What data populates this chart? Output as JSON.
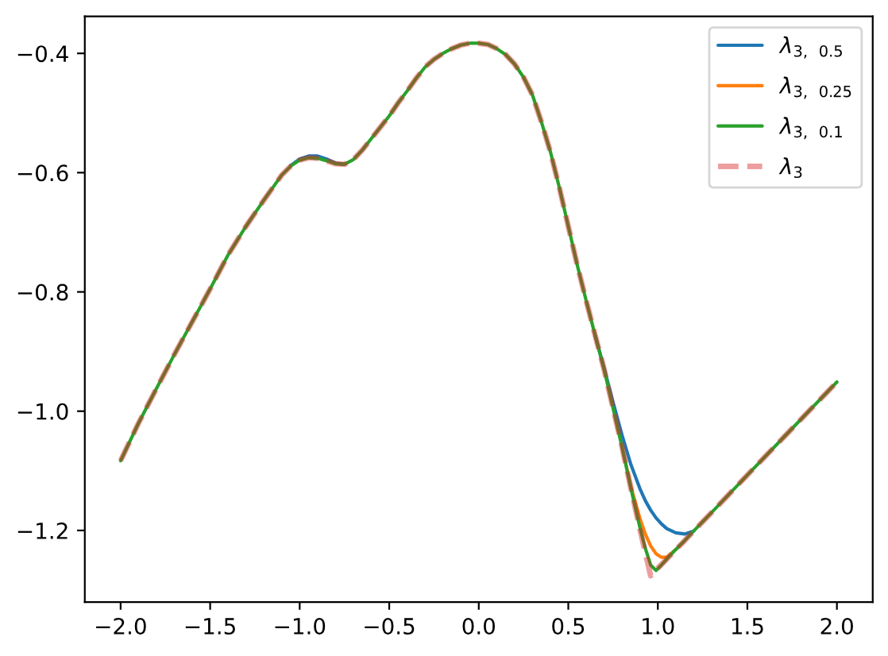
{
  "chart_data": {
    "type": "line",
    "x": [
      -2.0,
      -1.9,
      -1.8,
      -1.7,
      -1.6,
      -1.5,
      -1.4,
      -1.3,
      -1.25,
      -1.2,
      -1.15,
      -1.1,
      -1.05,
      -1.0,
      -0.95,
      -0.9,
      -0.85,
      -0.8,
      -0.75,
      -0.7,
      -0.65,
      -0.6,
      -0.55,
      -0.5,
      -0.45,
      -0.4,
      -0.35,
      -0.3,
      -0.25,
      -0.2,
      -0.15,
      -0.1,
      -0.05,
      0.0,
      0.05,
      0.1,
      0.15,
      0.2,
      0.25,
      0.3,
      0.35,
      0.4,
      0.45,
      0.5,
      0.55,
      0.6,
      0.65,
      0.7,
      0.75,
      0.8,
      0.85,
      0.9,
      0.93,
      0.96,
      0.99,
      1.02,
      1.05,
      1.1,
      1.15,
      1.2,
      1.3,
      1.5,
      1.75,
      2.0
    ],
    "series": [
      {
        "name": "λ$_{3,}$ $_{0.5}$",
        "color": "#1f77b4",
        "line_style": "solid",
        "values": [
          null,
          null,
          null,
          null,
          null,
          null,
          null,
          null,
          null,
          null,
          null,
          null,
          -0.588,
          -0.577,
          -0.572,
          -0.572,
          -0.577,
          -0.584,
          -0.586,
          null,
          null,
          null,
          null,
          null,
          null,
          null,
          null,
          null,
          null,
          null,
          null,
          null,
          null,
          null,
          null,
          null,
          null,
          null,
          null,
          null,
          null,
          null,
          null,
          null,
          null,
          null,
          -0.873,
          -0.928,
          -0.985,
          -1.04,
          -1.09,
          -1.13,
          -1.15,
          -1.166,
          -1.179,
          -1.189,
          -1.197,
          -1.204,
          -1.206,
          -1.201,
          null,
          null,
          null,
          null
        ]
      },
      {
        "name": "λ$_{3,}$ $_{0.25}$",
        "color": "#ff7f0e",
        "line_style": "solid",
        "values": [
          null,
          null,
          null,
          null,
          null,
          null,
          null,
          null,
          null,
          null,
          null,
          null,
          null,
          null,
          null,
          null,
          null,
          null,
          null,
          null,
          null,
          null,
          null,
          null,
          null,
          null,
          null,
          null,
          null,
          null,
          null,
          null,
          null,
          null,
          null,
          null,
          null,
          null,
          null,
          null,
          null,
          null,
          null,
          null,
          null,
          null,
          null,
          null,
          null,
          -1.06,
          -1.127,
          -1.18,
          -1.206,
          -1.226,
          -1.239,
          -1.245,
          -1.245,
          -1.232,
          null,
          null,
          null,
          null,
          null,
          null
        ]
      },
      {
        "name": "λ$_{3,}$ $_{0.1}$",
        "color": "#2ca02c",
        "line_style": "solid",
        "values": [
          -1.083,
          -1.02,
          -0.962,
          -0.905,
          -0.85,
          -0.795,
          -0.738,
          -0.69,
          -0.668,
          -0.646,
          -0.625,
          -0.604,
          -0.589,
          -0.579,
          -0.575,
          -0.576,
          -0.58,
          -0.585,
          -0.586,
          -0.578,
          -0.562,
          -0.543,
          -0.524,
          -0.505,
          -0.483,
          -0.463,
          -0.442,
          -0.423,
          -0.41,
          -0.4,
          -0.392,
          -0.386,
          -0.383,
          -0.383,
          -0.385,
          -0.392,
          -0.402,
          -0.418,
          -0.44,
          -0.47,
          -0.515,
          -0.565,
          -0.625,
          -0.69,
          -0.755,
          -0.815,
          -0.873,
          -0.93,
          -0.995,
          -1.06,
          -1.13,
          -1.195,
          -1.23,
          -1.258,
          -1.267,
          -1.258,
          -1.248,
          -1.232,
          -1.217,
          -1.201,
          -1.17,
          -1.107,
          -1.029,
          -0.951
        ]
      },
      {
        "name": "λ$_{3}$",
        "color": "#d62728",
        "line_style": "dashed",
        "values": [
          -1.083,
          -1.02,
          -0.962,
          -0.905,
          -0.85,
          -0.795,
          -0.738,
          -0.69,
          -0.668,
          -0.646,
          -0.625,
          -0.604,
          -0.589,
          -0.579,
          -0.575,
          -0.576,
          -0.58,
          -0.585,
          -0.586,
          -0.578,
          -0.562,
          -0.543,
          -0.524,
          -0.505,
          -0.483,
          -0.463,
          -0.442,
          -0.423,
          -0.41,
          -0.4,
          -0.392,
          -0.386,
          -0.383,
          -0.383,
          -0.385,
          -0.392,
          -0.402,
          -0.418,
          -0.44,
          -0.47,
          -0.515,
          -0.565,
          -0.625,
          -0.69,
          -0.755,
          -0.815,
          -0.873,
          -0.93,
          -0.995,
          -1.06,
          -1.13,
          -1.198,
          -1.237,
          -1.276,
          -1.266,
          -1.257,
          -1.248,
          -1.232,
          -1.217,
          -1.201,
          -1.17,
          -1.107,
          -1.029,
          -0.951
        ]
      }
    ],
    "xlim": [
      -2.2,
      2.2
    ],
    "ylim": [
      -1.32,
      -0.338
    ],
    "xticks": [
      {
        "value": -2.0,
        "label": "−2.0"
      },
      {
        "value": -1.5,
        "label": "−1.5"
      },
      {
        "value": -1.0,
        "label": "−1.0"
      },
      {
        "value": -0.5,
        "label": "−0.5"
      },
      {
        "value": 0.0,
        "label": "0.0"
      },
      {
        "value": 0.5,
        "label": "0.5"
      },
      {
        "value": 1.0,
        "label": "1.0"
      },
      {
        "value": 1.5,
        "label": "1.5"
      },
      {
        "value": 2.0,
        "label": "2.0"
      }
    ],
    "yticks": [
      {
        "value": -1.2,
        "label": "−1.2"
      },
      {
        "value": -1.0,
        "label": "−1.0"
      },
      {
        "value": -0.8,
        "label": "−0.8"
      },
      {
        "value": -0.6,
        "label": "−0.6"
      },
      {
        "value": -0.4,
        "label": "−0.4"
      }
    ],
    "legend": "top right",
    "grid": false
  }
}
